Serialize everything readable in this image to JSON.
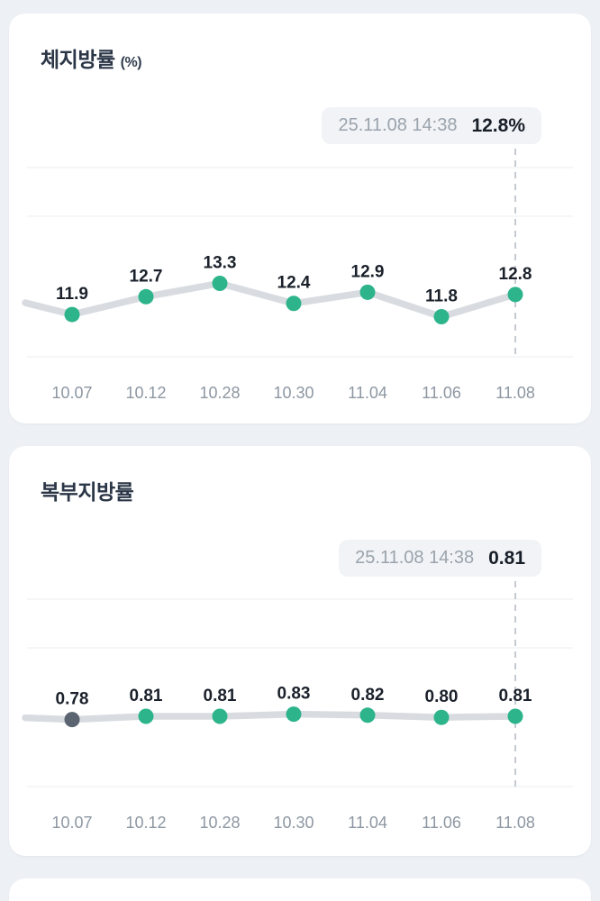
{
  "theme": {
    "page_background": "#edf0f4",
    "card_background": "#ffffff",
    "accent_green": "#2db48b",
    "muted_gray_dot": "#5b6571",
    "line_gray": "#d8dce1",
    "grid_gray": "#e9ecef",
    "dash_gray": "#c5cad1",
    "title_color": "#2b3647",
    "point_label_color": "#1b212b",
    "axis_label_color": "#8d97a2",
    "tooltip_bg": "#f1f3f6",
    "tooltip_date_color": "#9aa3ad",
    "tooltip_value_color": "#191f29"
  },
  "cards": [
    {
      "title": "체지방률",
      "unit": "(%)",
      "tooltip_date": "25.11.08 14:38",
      "tooltip_value": "12.8%"
    },
    {
      "title": "복부지방률",
      "unit": "",
      "tooltip_date": "25.11.08 14:38",
      "tooltip_value": "0.81"
    }
  ],
  "chart_data": [
    {
      "type": "line",
      "title": "체지방률 (%)",
      "categories": [
        "10.07",
        "10.12",
        "10.28",
        "10.30",
        "11.04",
        "11.06",
        "11.08"
      ],
      "values": [
        11.9,
        12.7,
        13.3,
        12.4,
        12.9,
        11.8,
        12.8
      ],
      "point_labels": [
        "11.9",
        "12.7",
        "13.3",
        "12.4",
        "12.9",
        "11.8",
        "12.8"
      ],
      "point_colors": [
        "#2db48b",
        "#2db48b",
        "#2db48b",
        "#2db48b",
        "#2db48b",
        "#2db48b",
        "#2db48b"
      ],
      "highlight_index": 6,
      "selected_datetime": "25.11.08 14:38",
      "selected_value": "12.8%",
      "xlabel": "",
      "ylabel": "",
      "ylim": [
        10,
        18.5
      ],
      "grid": true,
      "legend": "none"
    },
    {
      "type": "line",
      "title": "복부지방률",
      "categories": [
        "10.07",
        "10.12",
        "10.28",
        "10.30",
        "11.04",
        "11.06",
        "11.08"
      ],
      "values": [
        0.78,
        0.81,
        0.81,
        0.83,
        0.82,
        0.8,
        0.81
      ],
      "point_labels": [
        "0.78",
        "0.81",
        "0.81",
        "0.83",
        "0.82",
        "0.80",
        "0.81"
      ],
      "point_colors": [
        "#5b6571",
        "#2db48b",
        "#2db48b",
        "#2db48b",
        "#2db48b",
        "#2db48b",
        "#2db48b"
      ],
      "highlight_index": 6,
      "selected_datetime": "25.11.08 14:38",
      "selected_value": "0.81",
      "xlabel": "",
      "ylabel": "",
      "ylim": [
        0.16,
        1.9
      ],
      "grid": true,
      "legend": "none"
    }
  ]
}
